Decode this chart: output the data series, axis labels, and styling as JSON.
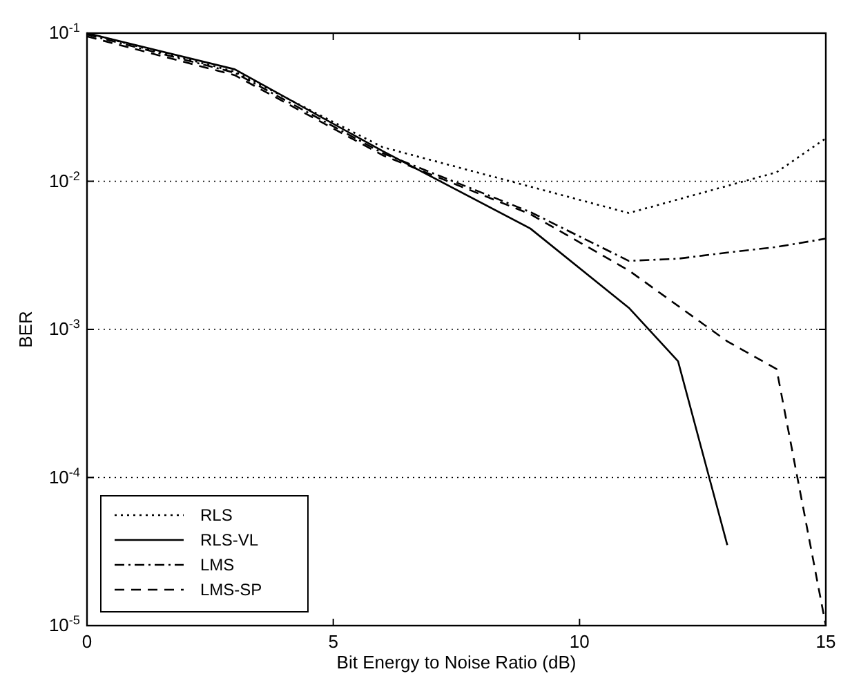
{
  "chart_data": {
    "type": "line",
    "xlabel": "Bit Energy to Noise Ratio (dB)",
    "ylabel": "BER",
    "log": "y",
    "grid": "y",
    "legend": "bottom left",
    "xlim": [
      0,
      15
    ],
    "xticks": [
      0,
      5,
      10,
      15
    ],
    "ylim": [
      1e-05,
      0.1
    ],
    "yticks": [
      {
        "value": 1e-05,
        "label": "10$^{-5}$"
      },
      {
        "value": 0.0001,
        "label": "10$^{-4}$"
      },
      {
        "value": 0.001,
        "label": "10$^{-3}$"
      },
      {
        "value": 0.01,
        "label": "10$^{-2}$"
      },
      {
        "value": 0.1,
        "label": "10$^{-1}$"
      }
    ],
    "series": [
      {
        "name": "RLS",
        "color": "#000000",
        "line_style": "dotted",
        "x": [
          0,
          3,
          6,
          9,
          11,
          14,
          15
        ],
        "values": [
          0.1,
          0.055,
          0.017,
          0.0092,
          0.0061,
          0.0115,
          0.0195
        ]
      },
      {
        "name": "RLS-VL",
        "color": "#000000",
        "line_style": "solid",
        "x": [
          0,
          3,
          6,
          9,
          11,
          12,
          13
        ],
        "values": [
          0.1,
          0.057,
          0.016,
          0.0048,
          0.0014,
          0.00061,
          3.5e-05
        ]
      },
      {
        "name": "LMS",
        "color": "#000000",
        "line_style": "dashdot",
        "x": [
          0,
          3,
          6,
          9,
          11,
          12,
          13,
          14,
          15
        ],
        "values": [
          0.098,
          0.054,
          0.0155,
          0.0062,
          0.0029,
          0.003,
          0.0033,
          0.0036,
          0.0041
        ]
      },
      {
        "name": "LMS-SP",
        "color": "#000000",
        "line_style": "dashed",
        "x": [
          0,
          3,
          6,
          9,
          11,
          13,
          14,
          15
        ],
        "values": [
          0.095,
          0.052,
          0.015,
          0.006,
          0.0025,
          0.00083,
          0.00054,
          1e-05
        ]
      }
    ]
  }
}
